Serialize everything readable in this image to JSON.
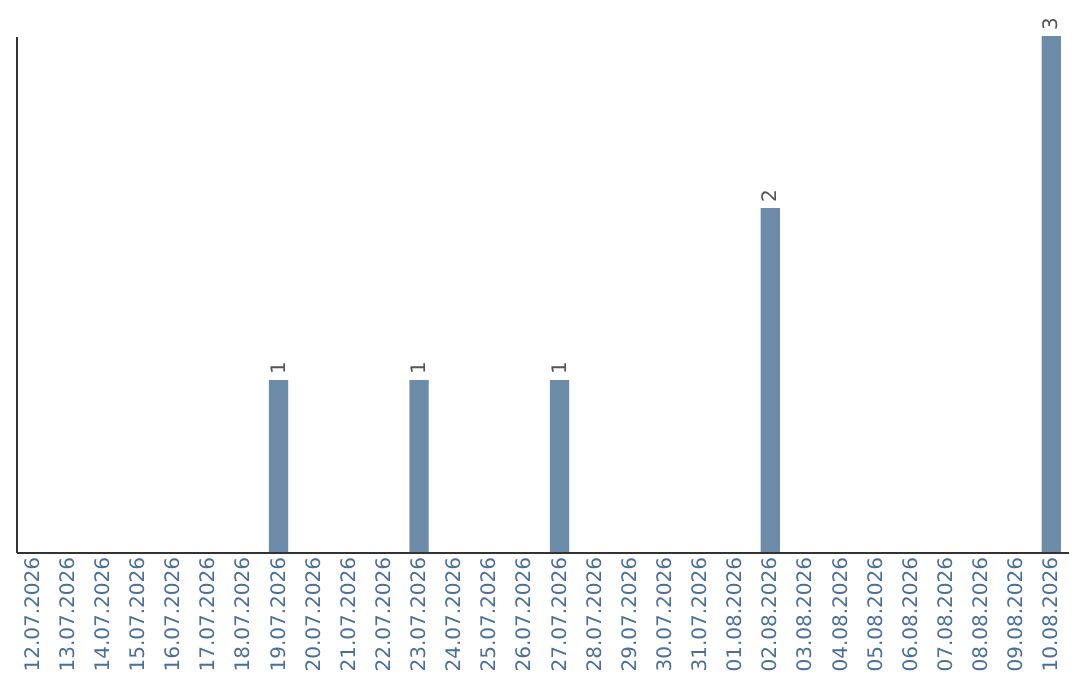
{
  "chart_data": {
    "type": "bar",
    "categories": [
      "12.07.2026",
      "13.07.2026",
      "14.07.2026",
      "15.07.2026",
      "16.07.2026",
      "17.07.2026",
      "18.07.2026",
      "19.07.2026",
      "20.07.2026",
      "21.07.2026",
      "22.07.2026",
      "23.07.2026",
      "24.07.2026",
      "25.07.2026",
      "26.07.2026",
      "27.07.2026",
      "28.07.2026",
      "29.07.2026",
      "30.07.2026",
      "31.07.2026",
      "01.08.2026",
      "02.08.2026",
      "03.08.2026",
      "04.08.2026",
      "05.08.2026",
      "06.08.2026",
      "07.08.2026",
      "08.08.2026",
      "09.08.2026",
      "10.08.2026"
    ],
    "values": [
      0,
      0,
      0,
      0,
      0,
      0,
      0,
      1,
      0,
      0,
      0,
      1,
      0,
      0,
      0,
      1,
      0,
      0,
      0,
      0,
      0,
      2,
      0,
      0,
      0,
      0,
      0,
      0,
      0,
      3
    ],
    "value_labels": [
      null,
      null,
      null,
      null,
      null,
      null,
      null,
      "1",
      null,
      null,
      null,
      "1",
      null,
      null,
      null,
      "1",
      null,
      null,
      null,
      null,
      null,
      "2",
      null,
      null,
      null,
      null,
      null,
      null,
      null,
      "3"
    ],
    "color": "#6d8caa",
    "tick_labels": "x",
    "grid": false
  }
}
